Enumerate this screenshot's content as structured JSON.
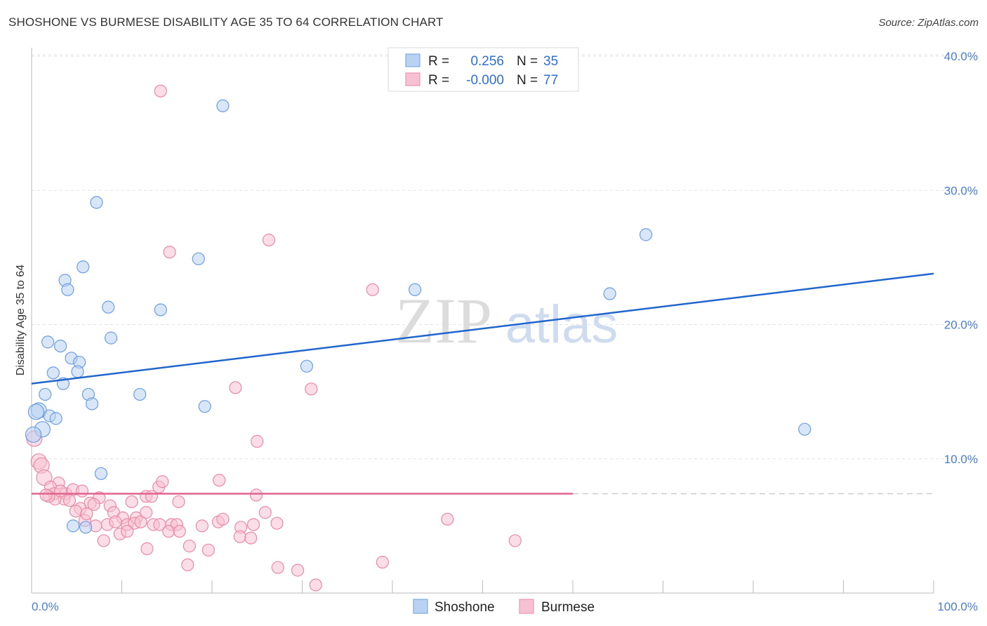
{
  "header": {
    "title": "SHOSHONE VS BURMESE DISABILITY AGE 35 TO 64 CORRELATION CHART",
    "source": "Source: ZipAtlas.com"
  },
  "watermark": {
    "zip": "ZIP",
    "atlas": "atlas"
  },
  "chart_data": {
    "type": "scatter",
    "title": "SHOSHONE VS BURMESE DISABILITY AGE 35 TO 64 CORRELATION CHART",
    "xlabel": "",
    "ylabel": "Disability Age 35 to 64",
    "xlim": [
      0,
      100
    ],
    "ylim": [
      0,
      40
    ],
    "x_tick_labels": [
      "0.0%",
      "100.0%"
    ],
    "y_ticks": [
      10,
      20,
      30,
      40
    ],
    "y_tick_labels": [
      "10.0%",
      "20.0%",
      "30.0%",
      "40.0%"
    ],
    "grid": true,
    "legend": {
      "position": "top-center",
      "rows": [
        {
          "r_label": "R =",
          "r_value": "0.256",
          "n_label": "N =",
          "n_value": "35"
        },
        {
          "r_label": "R =",
          "r_value": "-0.000",
          "n_label": "N =",
          "n_value": "77"
        }
      ]
    },
    "series": [
      {
        "name": "Shoshone",
        "color": "#6a9fe0",
        "fill": "#b9d1f3",
        "trend": {
          "x": [
            0,
            100
          ],
          "y": [
            15.6,
            23.8
          ],
          "color": "#2166cc"
        },
        "points": [
          [
            21.2,
            36.3
          ],
          [
            7.2,
            29.1
          ],
          [
            68.1,
            26.7
          ],
          [
            18.5,
            24.9
          ],
          [
            5.7,
            24.3
          ],
          [
            3.7,
            23.3
          ],
          [
            4.0,
            22.6
          ],
          [
            42.5,
            22.6
          ],
          [
            64.1,
            22.3
          ],
          [
            8.5,
            21.3
          ],
          [
            14.3,
            21.1
          ],
          [
            8.8,
            19.0
          ],
          [
            1.8,
            18.7
          ],
          [
            3.2,
            18.4
          ],
          [
            4.4,
            17.5
          ],
          [
            5.3,
            17.2
          ],
          [
            30.5,
            16.9
          ],
          [
            5.1,
            16.5
          ],
          [
            2.4,
            16.4
          ],
          [
            3.5,
            15.6
          ],
          [
            1.5,
            14.8
          ],
          [
            6.3,
            14.8
          ],
          [
            12.0,
            14.8
          ],
          [
            6.7,
            14.1
          ],
          [
            19.2,
            13.9
          ],
          [
            0.8,
            13.6
          ],
          [
            2.0,
            13.2
          ],
          [
            2.7,
            13.0
          ],
          [
            1.2,
            12.2
          ],
          [
            0.2,
            11.8
          ],
          [
            85.7,
            12.2
          ],
          [
            7.7,
            8.9
          ],
          [
            4.6,
            5.0
          ],
          [
            6.0,
            4.9
          ],
          [
            0.5,
            13.5
          ]
        ]
      },
      {
        "name": "Burmese",
        "color": "#e98aa8",
        "fill": "#f6c1d2",
        "trend": {
          "x": [
            0,
            60
          ],
          "y": [
            7.4,
            7.4
          ],
          "dashed_to": 100,
          "color": "#e0648f"
        },
        "points": [
          [
            14.3,
            37.4
          ],
          [
            26.3,
            26.3
          ],
          [
            15.3,
            25.4
          ],
          [
            37.8,
            22.6
          ],
          [
            22.6,
            15.3
          ],
          [
            31.0,
            15.2
          ],
          [
            25.0,
            11.3
          ],
          [
            0.3,
            11.5
          ],
          [
            0.8,
            9.8
          ],
          [
            1.1,
            9.5
          ],
          [
            1.4,
            8.6
          ],
          [
            3.0,
            8.2
          ],
          [
            2.1,
            7.9
          ],
          [
            2.5,
            7.4
          ],
          [
            3.8,
            7.4
          ],
          [
            4.6,
            7.7
          ],
          [
            5.6,
            7.6
          ],
          [
            7.5,
            7.1
          ],
          [
            3.6,
            7.0
          ],
          [
            2.6,
            7.0
          ],
          [
            4.2,
            6.9
          ],
          [
            6.5,
            6.7
          ],
          [
            6.9,
            6.6
          ],
          [
            5.4,
            6.3
          ],
          [
            8.7,
            6.5
          ],
          [
            11.1,
            6.8
          ],
          [
            12.7,
            7.2
          ],
          [
            13.3,
            7.2
          ],
          [
            14.1,
            7.9
          ],
          [
            14.5,
            8.3
          ],
          [
            16.3,
            6.8
          ],
          [
            20.8,
            8.4
          ],
          [
            24.9,
            7.3
          ],
          [
            9.1,
            6.0
          ],
          [
            10.1,
            5.6
          ],
          [
            11.6,
            5.6
          ],
          [
            8.4,
            5.1
          ],
          [
            9.3,
            5.3
          ],
          [
            10.6,
            5.1
          ],
          [
            11.4,
            5.2
          ],
          [
            12.1,
            5.3
          ],
          [
            13.5,
            5.1
          ],
          [
            14.2,
            5.1
          ],
          [
            15.5,
            5.1
          ],
          [
            16.1,
            5.1
          ],
          [
            20.7,
            5.3
          ],
          [
            23.2,
            4.9
          ],
          [
            24.6,
            5.1
          ],
          [
            27.2,
            5.2
          ],
          [
            46.1,
            5.5
          ],
          [
            15.2,
            4.6
          ],
          [
            16.4,
            4.6
          ],
          [
            23.1,
            4.2
          ],
          [
            24.3,
            4.1
          ],
          [
            9.8,
            4.4
          ],
          [
            10.6,
            4.6
          ],
          [
            12.8,
            3.3
          ],
          [
            17.5,
            3.5
          ],
          [
            19.6,
            3.2
          ],
          [
            8.0,
            3.9
          ],
          [
            53.6,
            3.9
          ],
          [
            17.3,
            2.1
          ],
          [
            27.3,
            1.9
          ],
          [
            29.5,
            1.7
          ],
          [
            38.9,
            2.3
          ],
          [
            31.5,
            0.6
          ],
          [
            21.2,
            5.5
          ],
          [
            18.9,
            5.0
          ],
          [
            7.1,
            5.0
          ],
          [
            5.9,
            5.4
          ],
          [
            4.9,
            6.1
          ],
          [
            6.1,
            5.9
          ],
          [
            1.9,
            7.2
          ],
          [
            1.6,
            7.3
          ],
          [
            3.2,
            7.6
          ],
          [
            12.7,
            6.0
          ],
          [
            25.9,
            6.0
          ]
        ]
      }
    ]
  },
  "bottom_legend": [
    {
      "label": "Shoshone"
    },
    {
      "label": "Burmese"
    }
  ]
}
